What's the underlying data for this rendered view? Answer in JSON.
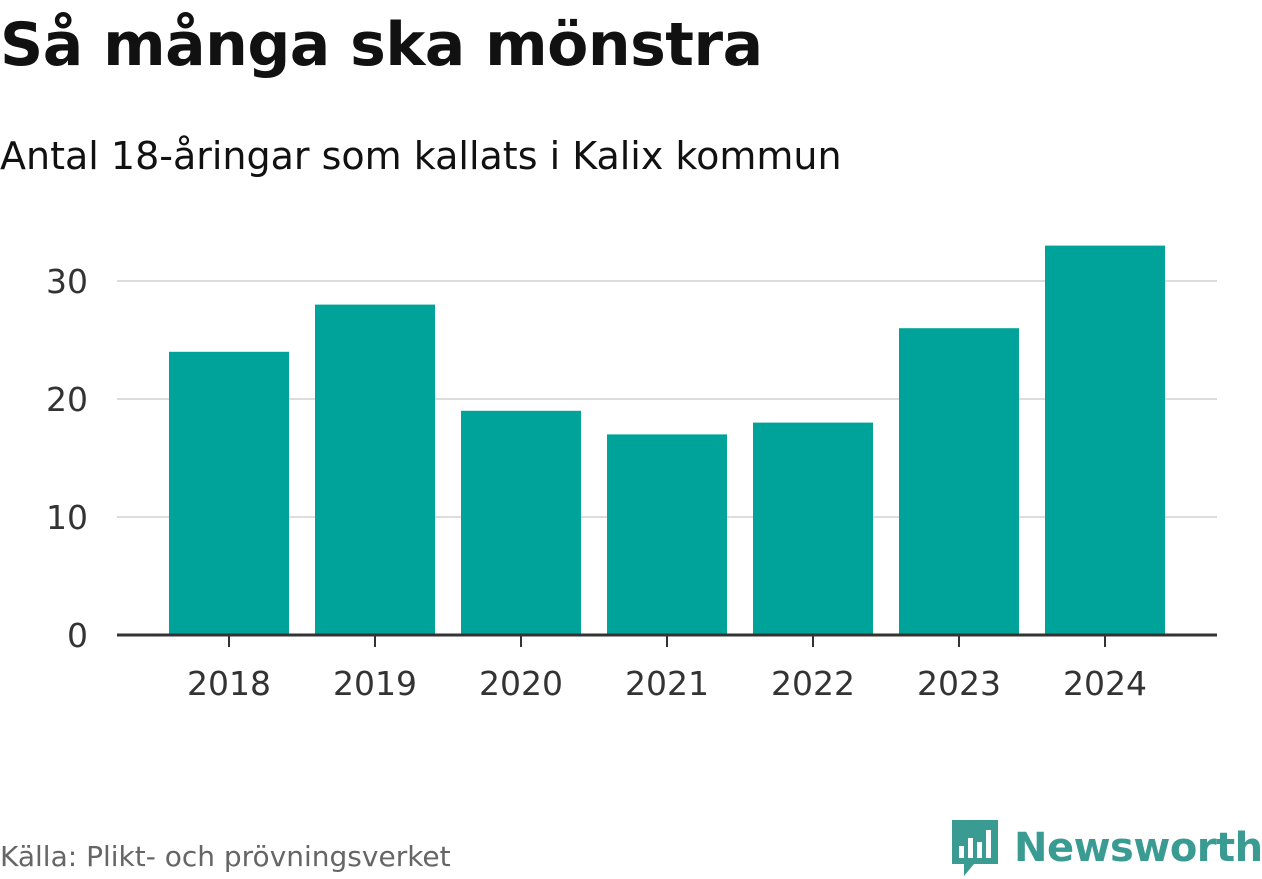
{
  "chart_data": {
    "type": "bar",
    "title": "Så många ska mönstra",
    "subtitle": "Antal 18-åringar som kallats i Kalix kommun",
    "categories": [
      "2018",
      "2019",
      "2020",
      "2021",
      "2022",
      "2023",
      "2024"
    ],
    "values": [
      24,
      28,
      19,
      17,
      18,
      26,
      33
    ],
    "xlabel": "",
    "ylabel": "",
    "ylim": [
      0,
      35
    ],
    "yticks": [
      0,
      10,
      20,
      30
    ],
    "grid": true,
    "legend": "none",
    "bar_color": "#00a39a"
  },
  "source": "Källa: Plikt- och prövningsverket",
  "brand": {
    "name": "Newsworthy",
    "logo_icon": "newsworthy-chart-bubble-icon",
    "color": "#3a9b92"
  }
}
